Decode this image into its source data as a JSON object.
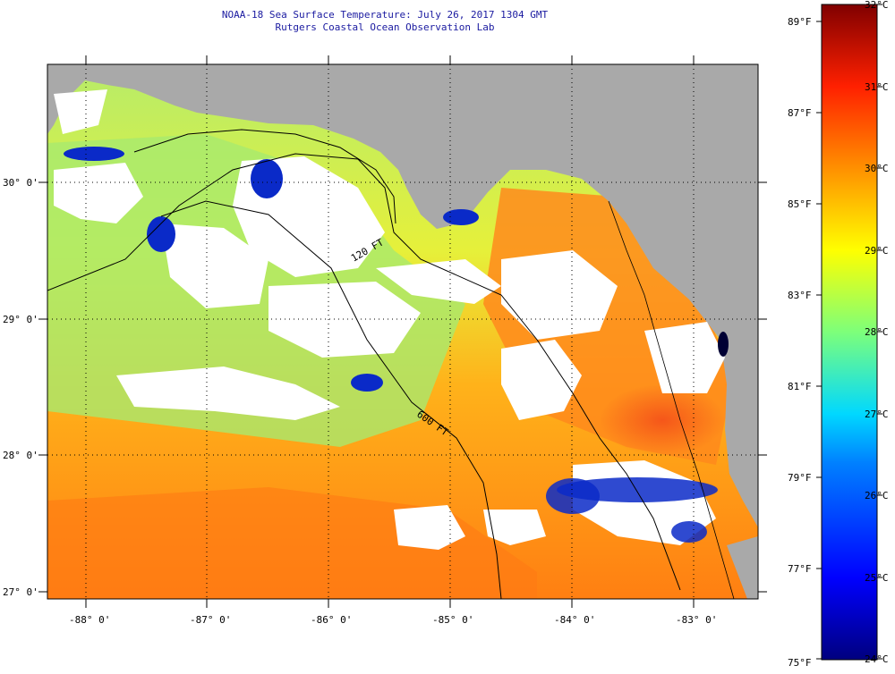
{
  "header": {
    "title": "NOAA-18 Sea Surface Temperature:  July 26, 2017 1304 GMT",
    "subtitle": "Rutgers Coastal Ocean Observation Lab"
  },
  "map": {
    "lat_ticks": [
      "30° 0'",
      "29° 0'",
      "28° 0'",
      "27° 0'"
    ],
    "lon_ticks": [
      "-88° 0'",
      "-87° 0'",
      "-86° 0'",
      "-85° 0'",
      "-84° 0'",
      "-83° 0'"
    ],
    "isobath_labels": [
      "120 FT",
      "600 FT"
    ],
    "colors": {
      "land": "#a9a9a9",
      "cloud": "#ffffff",
      "graticule": "#000000"
    }
  },
  "colorbar": {
    "fahrenheit_labels": [
      "89°F",
      "87°F",
      "85°F",
      "83°F",
      "81°F",
      "79°F",
      "77°F",
      "75°F"
    ],
    "celsius_labels": [
      "32°C",
      "31°C",
      "30°C",
      "29°C",
      "28°C",
      "27°C",
      "26°C",
      "25°C",
      "24°C"
    ],
    "range_c": [
      24,
      32
    ],
    "range_f": [
      75,
      89
    ]
  }
}
